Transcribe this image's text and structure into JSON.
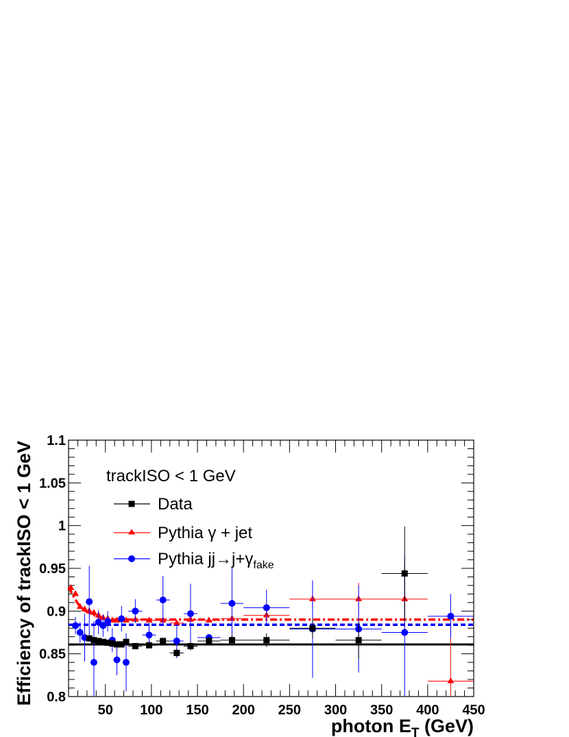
{
  "chart_data": {
    "type": "scatter",
    "title": "",
    "annotation": "trackISO < 1 GeV",
    "xlabel": {
      "main": "photon E",
      "sub": "T",
      "unit": " (GeV)"
    },
    "ylabel": "Efficiency of trackISO < 1 GeV",
    "xlim": [
      10,
      450
    ],
    "ylim": [
      0.8,
      1.1
    ],
    "x_ticks": [
      50,
      100,
      150,
      200,
      250,
      300,
      350,
      400,
      450
    ],
    "y_ticks": [
      0.8,
      0.85,
      0.9,
      0.95,
      1,
      1.05,
      1.1
    ],
    "y_tick_labels": [
      "0.8",
      "0.85",
      "0.9",
      "0.95",
      "1",
      "1.05",
      "1.1"
    ],
    "grid": false,
    "legend_position": "top-left",
    "series": [
      {
        "name": "Data",
        "marker": "square",
        "color": "#000000",
        "fit_value": 0.861,
        "fit_style": "solid",
        "points": [
          {
            "x": 32.5,
            "y": 0.868,
            "xerr": 2.5,
            "yerr": 0.002
          },
          {
            "x": 37.5,
            "y": 0.866,
            "xerr": 2.5,
            "yerr": 0.002
          },
          {
            "x": 42.5,
            "y": 0.865,
            "xerr": 2.5,
            "yerr": 0.002
          },
          {
            "x": 47.5,
            "y": 0.864,
            "xerr": 2.5,
            "yerr": 0.002
          },
          {
            "x": 52.5,
            "y": 0.863,
            "xerr": 2.5,
            "yerr": 0.002
          },
          {
            "x": 57.5,
            "y": 0.862,
            "xerr": 2.5,
            "yerr": 0.002
          },
          {
            "x": 62.5,
            "y": 0.861,
            "xerr": 2.5,
            "yerr": 0.002
          },
          {
            "x": 67.5,
            "y": 0.861,
            "xerr": 2.5,
            "yerr": 0.002
          },
          {
            "x": 72.5,
            "y": 0.864,
            "xerr": 2.5,
            "yerr": 0.002
          },
          {
            "x": 82.5,
            "y": 0.859,
            "xerr": 7.5,
            "yerr": 0.003
          },
          {
            "x": 97.5,
            "y": 0.86,
            "xerr": 7.5,
            "yerr": 0.003
          },
          {
            "x": 112.5,
            "y": 0.865,
            "xerr": 7.5,
            "yerr": 0.004
          },
          {
            "x": 127.5,
            "y": 0.851,
            "xerr": 7.5,
            "yerr": 0.005
          },
          {
            "x": 142.5,
            "y": 0.859,
            "xerr": 7.5,
            "yerr": 0.005
          },
          {
            "x": 162.5,
            "y": 0.865,
            "xerr": 12.5,
            "yerr": 0.005
          },
          {
            "x": 187.5,
            "y": 0.866,
            "xerr": 12.5,
            "yerr": 0.006
          },
          {
            "x": 225,
            "y": 0.866,
            "xerr": 25,
            "yerr": 0.008
          },
          {
            "x": 275,
            "y": 0.88,
            "xerr": 25,
            "yerr": 0.012
          },
          {
            "x": 325,
            "y": 0.866,
            "xerr": 25,
            "yerr": 0.022
          },
          {
            "x": 375,
            "y": 0.944,
            "xerr": 25,
            "yerr": 0.055
          }
        ]
      },
      {
        "name": "Pythia γ + jet",
        "marker": "triangle",
        "color": "#ff0000",
        "fit_value": 0.89,
        "fit_style": "dash-dot",
        "fit_curve": [
          [
            10,
            0.928
          ],
          [
            15,
            0.918
          ],
          [
            20,
            0.909
          ],
          [
            25,
            0.903
          ],
          [
            30,
            0.899
          ],
          [
            35,
            0.897
          ],
          [
            40,
            0.894
          ],
          [
            45,
            0.892
          ],
          [
            50,
            0.891
          ],
          [
            55,
            0.89
          ],
          [
            60,
            0.89
          ]
        ],
        "points": [
          {
            "x": 12.5,
            "y": 0.927,
            "xerr": 2.5,
            "yerr": 0.001
          },
          {
            "x": 17.5,
            "y": 0.92,
            "xerr": 2.5,
            "yerr": 0.001
          },
          {
            "x": 22.5,
            "y": 0.905,
            "xerr": 2.5,
            "yerr": 0.001
          },
          {
            "x": 27.5,
            "y": 0.902,
            "xerr": 2.5,
            "yerr": 0.001
          },
          {
            "x": 32.5,
            "y": 0.9,
            "xerr": 2.5,
            "yerr": 0.001
          },
          {
            "x": 37.5,
            "y": 0.898,
            "xerr": 2.5,
            "yerr": 0.001
          },
          {
            "x": 42.5,
            "y": 0.895,
            "xerr": 2.5,
            "yerr": 0.001
          },
          {
            "x": 47.5,
            "y": 0.892,
            "xerr": 2.5,
            "yerr": 0.001
          },
          {
            "x": 52.5,
            "y": 0.891,
            "xerr": 2.5,
            "yerr": 0.001
          },
          {
            "x": 57.5,
            "y": 0.889,
            "xerr": 2.5,
            "yerr": 0.001
          },
          {
            "x": 62.5,
            "y": 0.889,
            "xerr": 2.5,
            "yerr": 0.001
          },
          {
            "x": 67.5,
            "y": 0.89,
            "xerr": 2.5,
            "yerr": 0.001
          },
          {
            "x": 72.5,
            "y": 0.889,
            "xerr": 2.5,
            "yerr": 0.001
          },
          {
            "x": 82.5,
            "y": 0.89,
            "xerr": 7.5,
            "yerr": 0.001
          },
          {
            "x": 97.5,
            "y": 0.889,
            "xerr": 7.5,
            "yerr": 0.001
          },
          {
            "x": 112.5,
            "y": 0.889,
            "xerr": 7.5,
            "yerr": 0.002
          },
          {
            "x": 127.5,
            "y": 0.886,
            "xerr": 7.5,
            "yerr": 0.002
          },
          {
            "x": 142.5,
            "y": 0.89,
            "xerr": 7.5,
            "yerr": 0.002
          },
          {
            "x": 162.5,
            "y": 0.889,
            "xerr": 12.5,
            "yerr": 0.002
          },
          {
            "x": 187.5,
            "y": 0.891,
            "xerr": 12.5,
            "yerr": 0.003
          },
          {
            "x": 225,
            "y": 0.895,
            "xerr": 25,
            "yerr": 0.005
          },
          {
            "x": 275,
            "y": 0.914,
            "xerr": 25,
            "yerr": 0.012
          },
          {
            "x": 325,
            "y": 0.914,
            "xerr": 25,
            "yerr": 0.019
          },
          {
            "x": 375,
            "y": 0.914,
            "xerr": 25,
            "yerr": 0.04
          },
          {
            "x": 425,
            "y": 0.818,
            "xerr": 25,
            "yerr": 0.07
          }
        ]
      },
      {
        "name": "Pythia jj→j+γ",
        "name_subscript": "fake",
        "marker": "circle",
        "color": "#0000ff",
        "fit_value": 0.884,
        "fit_style": "dashed",
        "points": [
          {
            "x": 17.5,
            "y": 0.883,
            "xerr": 2.5,
            "yerr": 0.01
          },
          {
            "x": 22.5,
            "y": 0.875,
            "xerr": 2.5,
            "yerr": 0.012
          },
          {
            "x": 27.5,
            "y": 0.869,
            "xerr": 2.5,
            "yerr": 0.028
          },
          {
            "x": 32.5,
            "y": 0.911,
            "xerr": 2.5,
            "yerr": 0.042
          },
          {
            "x": 37.5,
            "y": 0.84,
            "xerr": 2.5,
            "yerr": 0.048
          },
          {
            "x": 42.5,
            "y": 0.887,
            "xerr": 2.5,
            "yerr": 0.014
          },
          {
            "x": 47.5,
            "y": 0.883,
            "xerr": 2.5,
            "yerr": 0.013
          },
          {
            "x": 52.5,
            "y": 0.888,
            "xerr": 2.5,
            "yerr": 0.012
          },
          {
            "x": 57.5,
            "y": 0.866,
            "xerr": 2.5,
            "yerr": 0.014
          },
          {
            "x": 62.5,
            "y": 0.843,
            "xerr": 2.5,
            "yerr": 0.018
          },
          {
            "x": 67.5,
            "y": 0.891,
            "xerr": 2.5,
            "yerr": 0.015
          },
          {
            "x": 72.5,
            "y": 0.84,
            "xerr": 2.5,
            "yerr": 0.034
          },
          {
            "x": 82.5,
            "y": 0.9,
            "xerr": 7.5,
            "yerr": 0.014
          },
          {
            "x": 97.5,
            "y": 0.872,
            "xerr": 7.5,
            "yerr": 0.014
          },
          {
            "x": 112.5,
            "y": 0.913,
            "xerr": 7.5,
            "yerr": 0.028
          },
          {
            "x": 127.5,
            "y": 0.865,
            "xerr": 7.5,
            "yerr": 0.02
          },
          {
            "x": 142.5,
            "y": 0.897,
            "xerr": 7.5,
            "yerr": 0.035
          },
          {
            "x": 162.5,
            "y": 0.869,
            "xerr": 12.5,
            "yerr": 0.004
          },
          {
            "x": 187.5,
            "y": 0.909,
            "xerr": 12.5,
            "yerr": 0.042
          },
          {
            "x": 225,
            "y": 0.904,
            "xerr": 25,
            "yerr": 0.021
          },
          {
            "x": 275,
            "y": 0.879,
            "xerr": 25,
            "yerr": 0.057
          },
          {
            "x": 325,
            "y": 0.879,
            "xerr": 25,
            "yerr": 0.051
          },
          {
            "x": 375,
            "y": 0.875,
            "xerr": 25,
            "yerr": 0.09
          },
          {
            "x": 425,
            "y": 0.894,
            "xerr": 25,
            "yerr": 0.026
          }
        ]
      }
    ]
  }
}
